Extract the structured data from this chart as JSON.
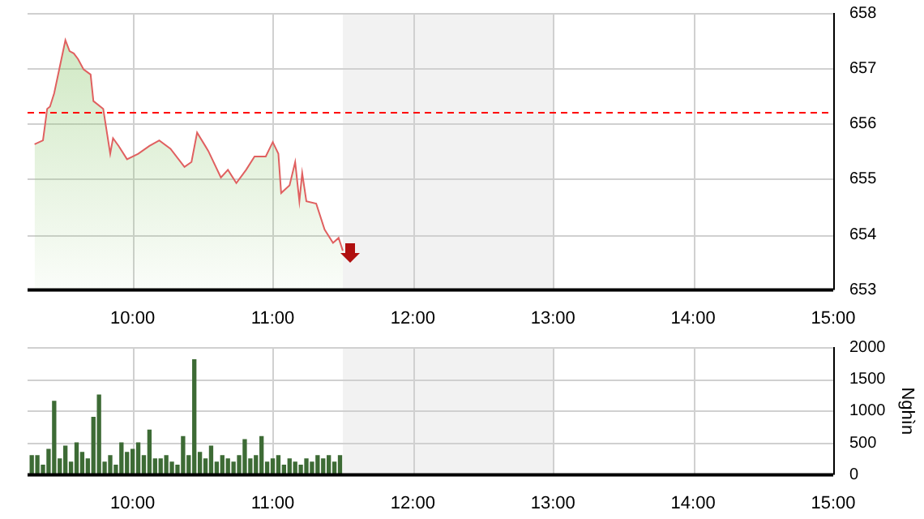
{
  "chart_data": [
    {
      "type": "area",
      "x": [
        9.3,
        9.36,
        9.39,
        9.41,
        9.44,
        9.48,
        9.52,
        9.55,
        9.58,
        9.61,
        9.65,
        9.7,
        9.72,
        9.79,
        9.84,
        9.86,
        9.9,
        9.96,
        10.04,
        10.12,
        10.19,
        10.27,
        10.37,
        10.42,
        10.46,
        10.54,
        10.63,
        10.68,
        10.74,
        10.81,
        10.87,
        10.95,
        11.0,
        11.04,
        11.06,
        11.12,
        11.16,
        11.19,
        11.21,
        11.24,
        11.31,
        11.37,
        11.43,
        11.47,
        11.5
      ],
      "series": [
        {
          "color": "#e06060",
          "values": [
            655.63,
            655.7,
            656.27,
            656.31,
            656.55,
            657.03,
            657.51,
            657.31,
            657.27,
            657.17,
            656.98,
            656.89,
            656.41,
            656.27,
            655.46,
            655.74,
            655.6,
            655.36,
            655.46,
            655.6,
            655.7,
            655.55,
            655.22,
            655.31,
            655.84,
            655.51,
            655.03,
            655.17,
            654.93,
            655.17,
            655.41,
            655.41,
            655.67,
            655.46,
            654.75,
            654.89,
            655.31,
            654.6,
            655.11,
            654.6,
            654.56,
            654.09,
            653.85,
            653.94,
            653.71
          ]
        }
      ],
      "xlim": [
        9.25,
        15
      ],
      "xticks": [
        {
          "value": 10,
          "label": "10:00"
        },
        {
          "value": 11,
          "label": "11:00"
        },
        {
          "value": 12,
          "label": "12:00"
        },
        {
          "value": 13,
          "label": "13:00"
        },
        {
          "value": 14,
          "label": "14:00"
        },
        {
          "value": 15,
          "label": "15:00"
        }
      ],
      "ylim": [
        653,
        658
      ],
      "yticks": [
        653,
        654,
        655,
        656,
        657,
        658
      ],
      "ref_lines": [
        {
          "axis": "y",
          "value": 656.2,
          "color": "#ff0000",
          "line_style": "dashed"
        }
      ],
      "bands": [
        {
          "axis": "x",
          "from": 11.5,
          "to": 13,
          "color": "#f2f2f2"
        }
      ],
      "grid": true,
      "legend": false
    },
    {
      "type": "bar",
      "x": [
        9.28,
        9.32,
        9.36,
        9.4,
        9.44,
        9.48,
        9.52,
        9.56,
        9.6,
        9.64,
        9.68,
        9.72,
        9.76,
        9.8,
        9.84,
        9.88,
        9.92,
        9.96,
        10.0,
        10.04,
        10.08,
        10.12,
        10.16,
        10.2,
        10.24,
        10.28,
        10.32,
        10.36,
        10.4,
        10.44,
        10.48,
        10.52,
        10.56,
        10.6,
        10.64,
        10.68,
        10.72,
        10.76,
        10.8,
        10.84,
        10.88,
        10.92,
        10.96,
        11.0,
        11.04,
        11.08,
        11.12,
        11.16,
        11.2,
        11.24,
        11.28,
        11.32,
        11.36,
        11.4,
        11.44,
        11.48
      ],
      "series": [
        {
          "color": "#3d6b35",
          "values": [
            300,
            300,
            150,
            400,
            1150,
            250,
            450,
            200,
            500,
            350,
            250,
            900,
            1250,
            200,
            300,
            150,
            500,
            350,
            400,
            500,
            300,
            700,
            250,
            250,
            300,
            200,
            150,
            600,
            300,
            1800,
            350,
            250,
            450,
            200,
            300,
            250,
            200,
            300,
            550,
            250,
            300,
            600,
            200,
            250,
            300,
            150,
            250,
            200,
            150,
            250,
            200,
            300,
            250,
            300,
            200,
            300
          ]
        }
      ],
      "xlim": [
        9.25,
        15
      ],
      "xticks": [
        {
          "value": 10,
          "label": "10:00"
        },
        {
          "value": 11,
          "label": "11:00"
        },
        {
          "value": 12,
          "label": "12:00"
        },
        {
          "value": 13,
          "label": "13:00"
        },
        {
          "value": 14,
          "label": "14:00"
        },
        {
          "value": 15,
          "label": "15:00"
        }
      ],
      "ylim": [
        0,
        2000
      ],
      "yticks": [
        0,
        500,
        1000,
        1500,
        2000
      ],
      "ylabel": "Nghìn",
      "bands": [
        {
          "axis": "x",
          "from": 11.5,
          "to": 13,
          "color": "#f2f2f2"
        }
      ],
      "grid": true,
      "legend": false
    }
  ]
}
